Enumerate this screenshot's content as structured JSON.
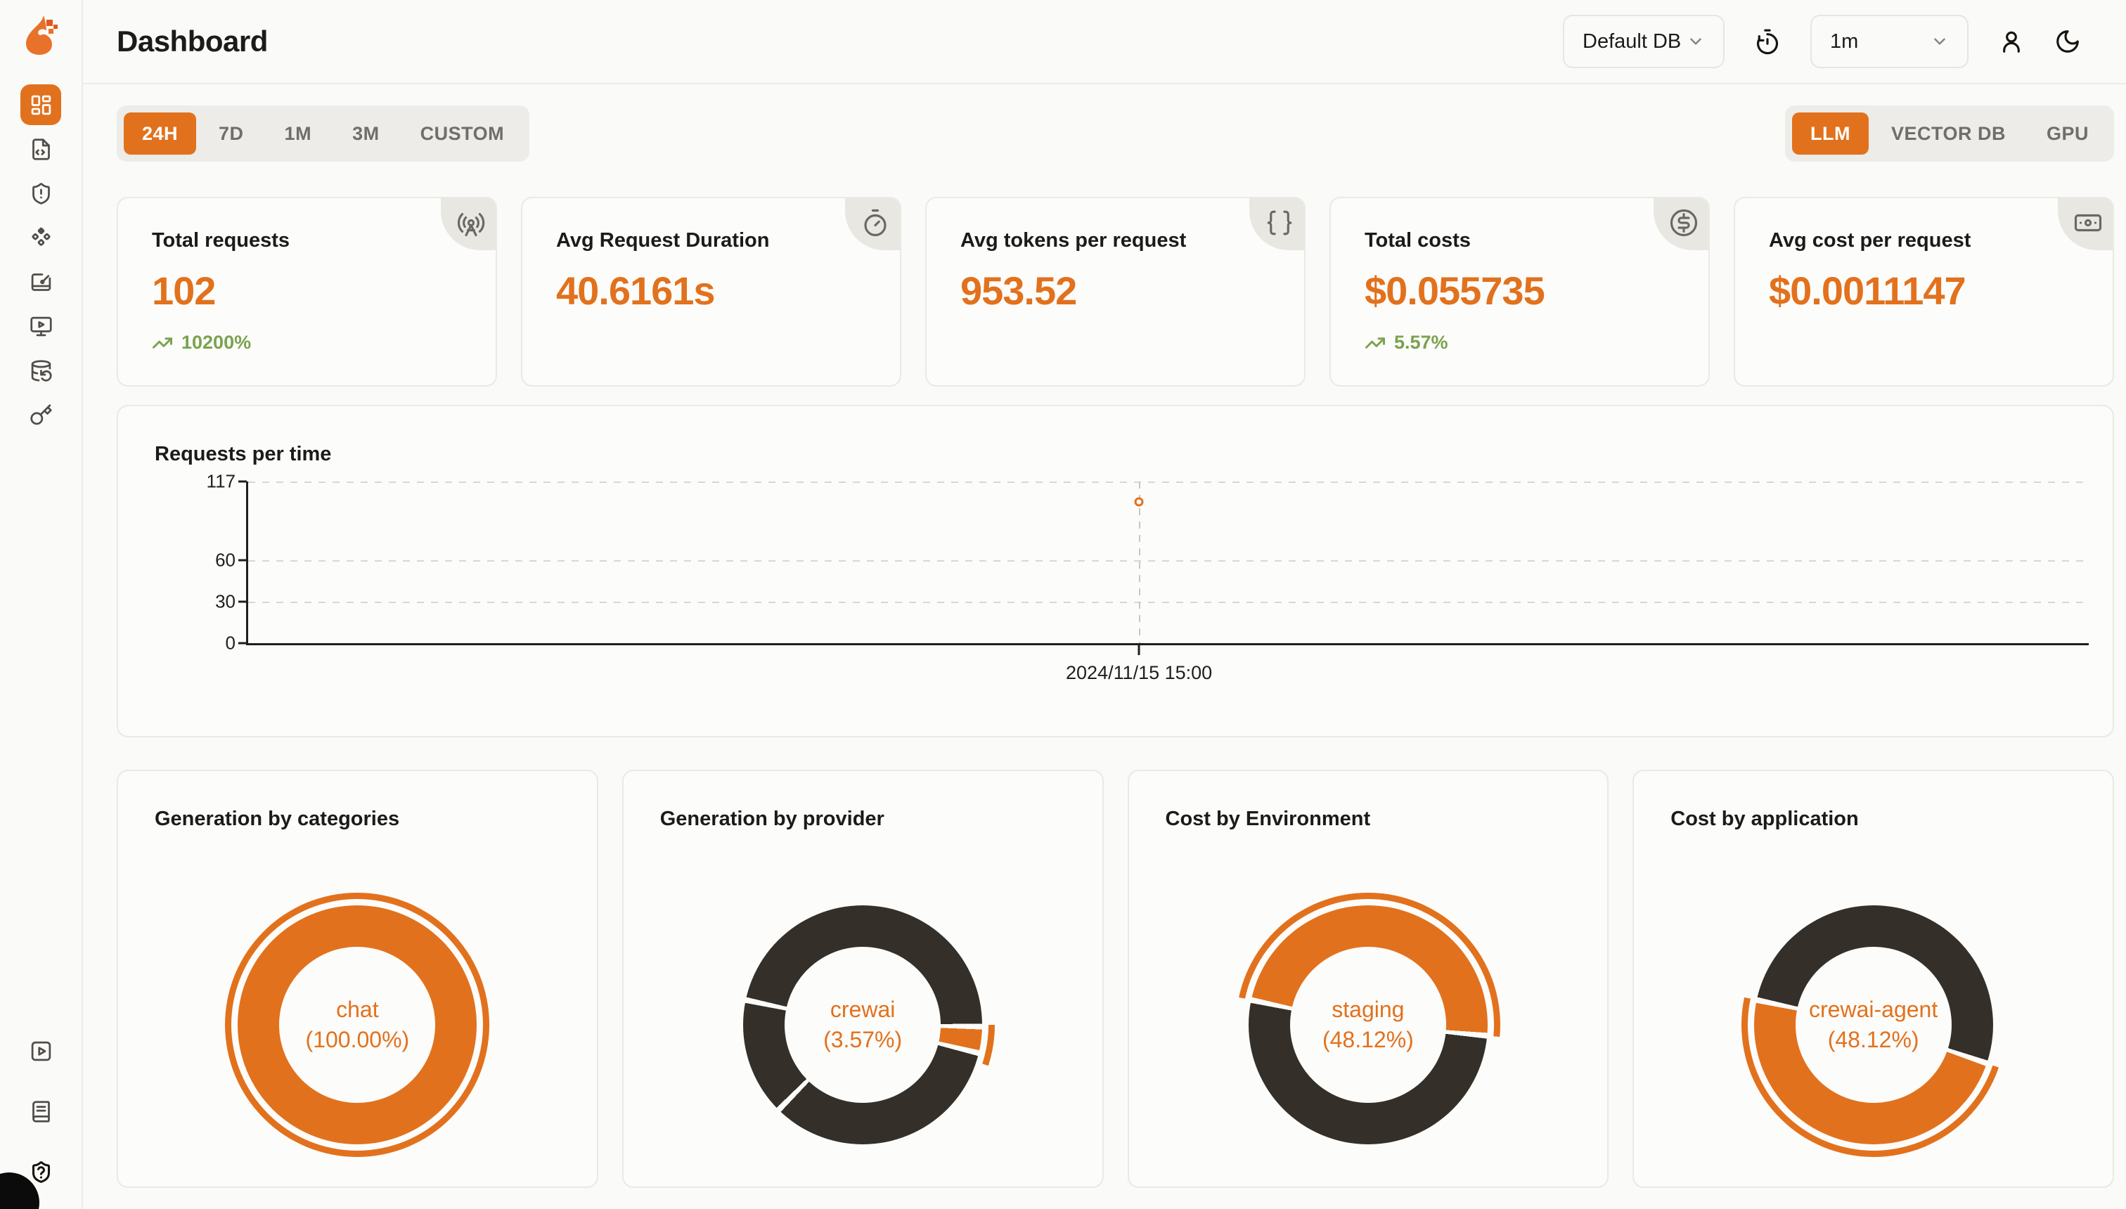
{
  "colors": {
    "accent": "#E2711D",
    "dark_slice": "#343029",
    "positive": "#7BA24E",
    "card_bg": "#FCFCFA"
  },
  "header": {
    "title": "Dashboard",
    "db_select": {
      "value": "Default DB"
    },
    "interval_select": {
      "value": "1m"
    },
    "icons": [
      "timer-reset-icon",
      "user-icon",
      "moon-icon"
    ]
  },
  "time_tabs": {
    "items": [
      "24H",
      "7D",
      "1M",
      "3M",
      "CUSTOM"
    ],
    "active": "24H"
  },
  "category_tabs": {
    "items": [
      "LLM",
      "VECTOR DB",
      "GPU"
    ],
    "active": "LLM"
  },
  "sidebar": {
    "active_index": 0,
    "icons": [
      "layout-dashboard-icon",
      "file-code-icon",
      "shield-alert-icon",
      "component-diamonds-icon",
      "board-edit-icon",
      "monitor-play-icon",
      "database-backup-icon",
      "key-icon"
    ],
    "footer_icons": [
      "square-play-icon",
      "book-icon",
      "shield-question-icon"
    ]
  },
  "stat_cards": [
    {
      "label": "Total requests",
      "value": "102",
      "delta": "10200%",
      "icon": "radio-tower-icon"
    },
    {
      "label": "Avg Request Duration",
      "value": "40.6161s",
      "delta": "",
      "icon": "stopwatch-icon"
    },
    {
      "label": "Avg tokens per request",
      "value": "953.52",
      "delta": "",
      "icon": "braces-icon"
    },
    {
      "label": "Total costs",
      "value": "$0.055735",
      "delta": "5.57%",
      "icon": "dollar-circle-icon"
    },
    {
      "label": "Avg cost per request",
      "value": "$0.0011147",
      "delta": "",
      "icon": "banknote-icon"
    }
  ],
  "chart_data": [
    {
      "type": "line",
      "title": "Requests per time",
      "x": [
        "2024/11/15 15:00"
      ],
      "series": [
        {
          "name": "Requests",
          "values": [
            102
          ]
        }
      ],
      "ylim": [
        0,
        117
      ],
      "yticks": [
        0,
        30,
        60,
        117
      ],
      "grid": "dashed-horizontal",
      "legend": "none",
      "point_x_pct": 48.4,
      "point_style": "hollow-orange-circle",
      "xlabel": "",
      "ylabel": ""
    },
    {
      "type": "pie",
      "title": "Generation by categories",
      "center_label": "chat",
      "center_pct": "(100.00%)",
      "start_angle_deg": 282,
      "slices": [
        {
          "name": "chat",
          "pct": 100,
          "color": "#E2711D"
        }
      ],
      "outer_arc": {
        "from_deg": 0,
        "to_deg": 360
      }
    },
    {
      "type": "pie",
      "title": "Generation by provider",
      "center_label": "crewai",
      "center_pct": "(3.57%)",
      "start_angle_deg": 282,
      "slices": [
        {
          "name": "",
          "pct": 46.9,
          "color": "#343029"
        },
        {
          "name": "crewai",
          "pct": 3.57,
          "color": "#E2711D"
        },
        {
          "name": "",
          "pct": 33.6,
          "color": "#343029"
        },
        {
          "name": "",
          "pct": 15.93,
          "color": "#343029"
        }
      ],
      "outer_arc": {
        "from_deg": 168,
        "to_deg": 186
      }
    },
    {
      "type": "pie",
      "title": "Cost by Environment",
      "center_label": "staging",
      "center_pct": "(48.12%)",
      "start_angle_deg": 282,
      "slices": [
        {
          "name": "staging",
          "pct": 48.12,
          "color": "#E2711D"
        },
        {
          "name": "",
          "pct": 51.88,
          "color": "#343029"
        }
      ],
      "outer_arc": {
        "from_deg": 0,
        "to_deg": 173.2
      }
    },
    {
      "type": "pie",
      "title": "Cost by application",
      "center_label": "crewai-agent",
      "center_pct": "(48.12%)",
      "start_angle_deg": 282,
      "slices": [
        {
          "name": "",
          "pct": 51.88,
          "color": "#343029"
        },
        {
          "name": "crewai-agent",
          "pct": 48.12,
          "color": "#E2711D"
        }
      ],
      "outer_arc": {
        "from_deg": 186.8,
        "to_deg": 360
      }
    }
  ]
}
